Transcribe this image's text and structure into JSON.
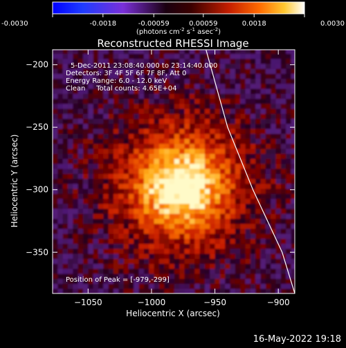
{
  "colorbar": {
    "ticks": [
      "-0.0030",
      "-0.0018",
      "-0.00059",
      "0.00059",
      "0.0018",
      "0.0030"
    ],
    "range": [
      -0.003,
      0.003
    ],
    "units_prefix": "(photons cm",
    "units_exp1": "-2",
    "units_mid1": " s",
    "units_exp2": "-1",
    "units_mid2": " asec",
    "units_exp3": "-2",
    "units_suffix": ")"
  },
  "chart_data": {
    "type": "heatmap",
    "title": "Reconstructed RHESSI Image",
    "xlabel": "Heliocentric X (arcsec)",
    "ylabel": "Heliocentric Y (arcsec)",
    "xlim": [
      -1078,
      -887
    ],
    "ylim": [
      -383,
      -188
    ],
    "x_ticks": [
      {
        "value": -1050,
        "label": "−1050"
      },
      {
        "value": -1000,
        "label": "−1000"
      },
      {
        "value": -950,
        "label": "−950"
      },
      {
        "value": -900,
        "label": "−900"
      }
    ],
    "y_ticks": [
      {
        "value": -200,
        "label": "−200"
      },
      {
        "value": -250,
        "label": "−250"
      },
      {
        "value": -300,
        "label": "−300"
      },
      {
        "value": -350,
        "label": "−350"
      }
    ],
    "annotations": [
      "5-Dec-2011 23:08:40.000 to 23:14:40.000",
      "Detectors: 3F 4F 5F 6F 7F 8F, Att 0",
      "Energy Range: 6.0 - 12.0 keV",
      "Clean     Total counts: 4.65E+04"
    ],
    "peak_label": "Position of Peak = [-979,-299]",
    "peak": [
      -979,
      -299
    ],
    "limb": [
      [
        -957,
        -188
      ],
      [
        -940,
        -250
      ],
      [
        -920,
        -300
      ],
      [
        -897,
        -350
      ],
      [
        -887,
        -383
      ]
    ]
  },
  "footer": {
    "timestamp": "16-May-2022 19:18"
  }
}
